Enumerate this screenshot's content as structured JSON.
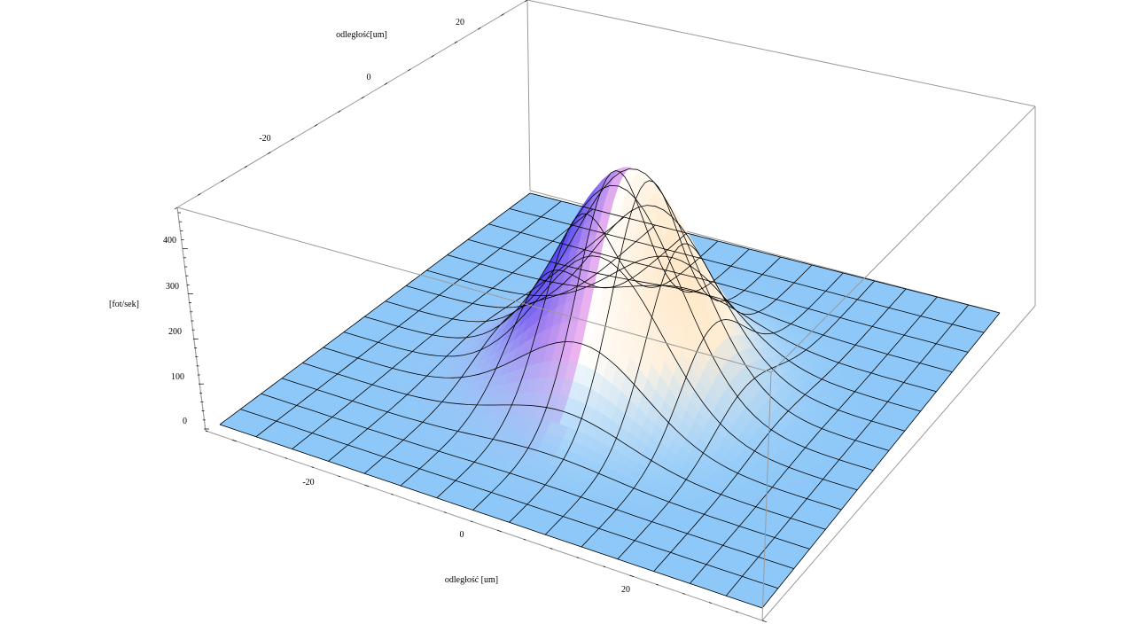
{
  "chart_data": {
    "type": "surface3d",
    "xlabel": "odległość [um]",
    "ylabel": "odległość[um]",
    "zlabel": "[fot/sek]",
    "x_ticks": [
      "-20",
      "0",
      "20"
    ],
    "y_ticks": [
      "-20",
      "0",
      "20"
    ],
    "z_ticks": [
      "0",
      "100",
      "200",
      "300",
      "400"
    ],
    "xlim": [
      -35,
      35
    ],
    "ylim": [
      -35,
      35
    ],
    "zlim": [
      0,
      480
    ],
    "surface": {
      "function": "gaussian",
      "amplitude": 470,
      "center_x": 0,
      "center_y": 0,
      "sigma": 8.5,
      "mesh_lines": 15
    },
    "colors": {
      "flat_region": "#8ec8f8",
      "peak_shading": [
        "#3a3af0",
        "#f4b8f0",
        "#ffffff",
        "#ffe8c8"
      ],
      "mesh": "#000000",
      "box": "#9a9a9a"
    }
  }
}
